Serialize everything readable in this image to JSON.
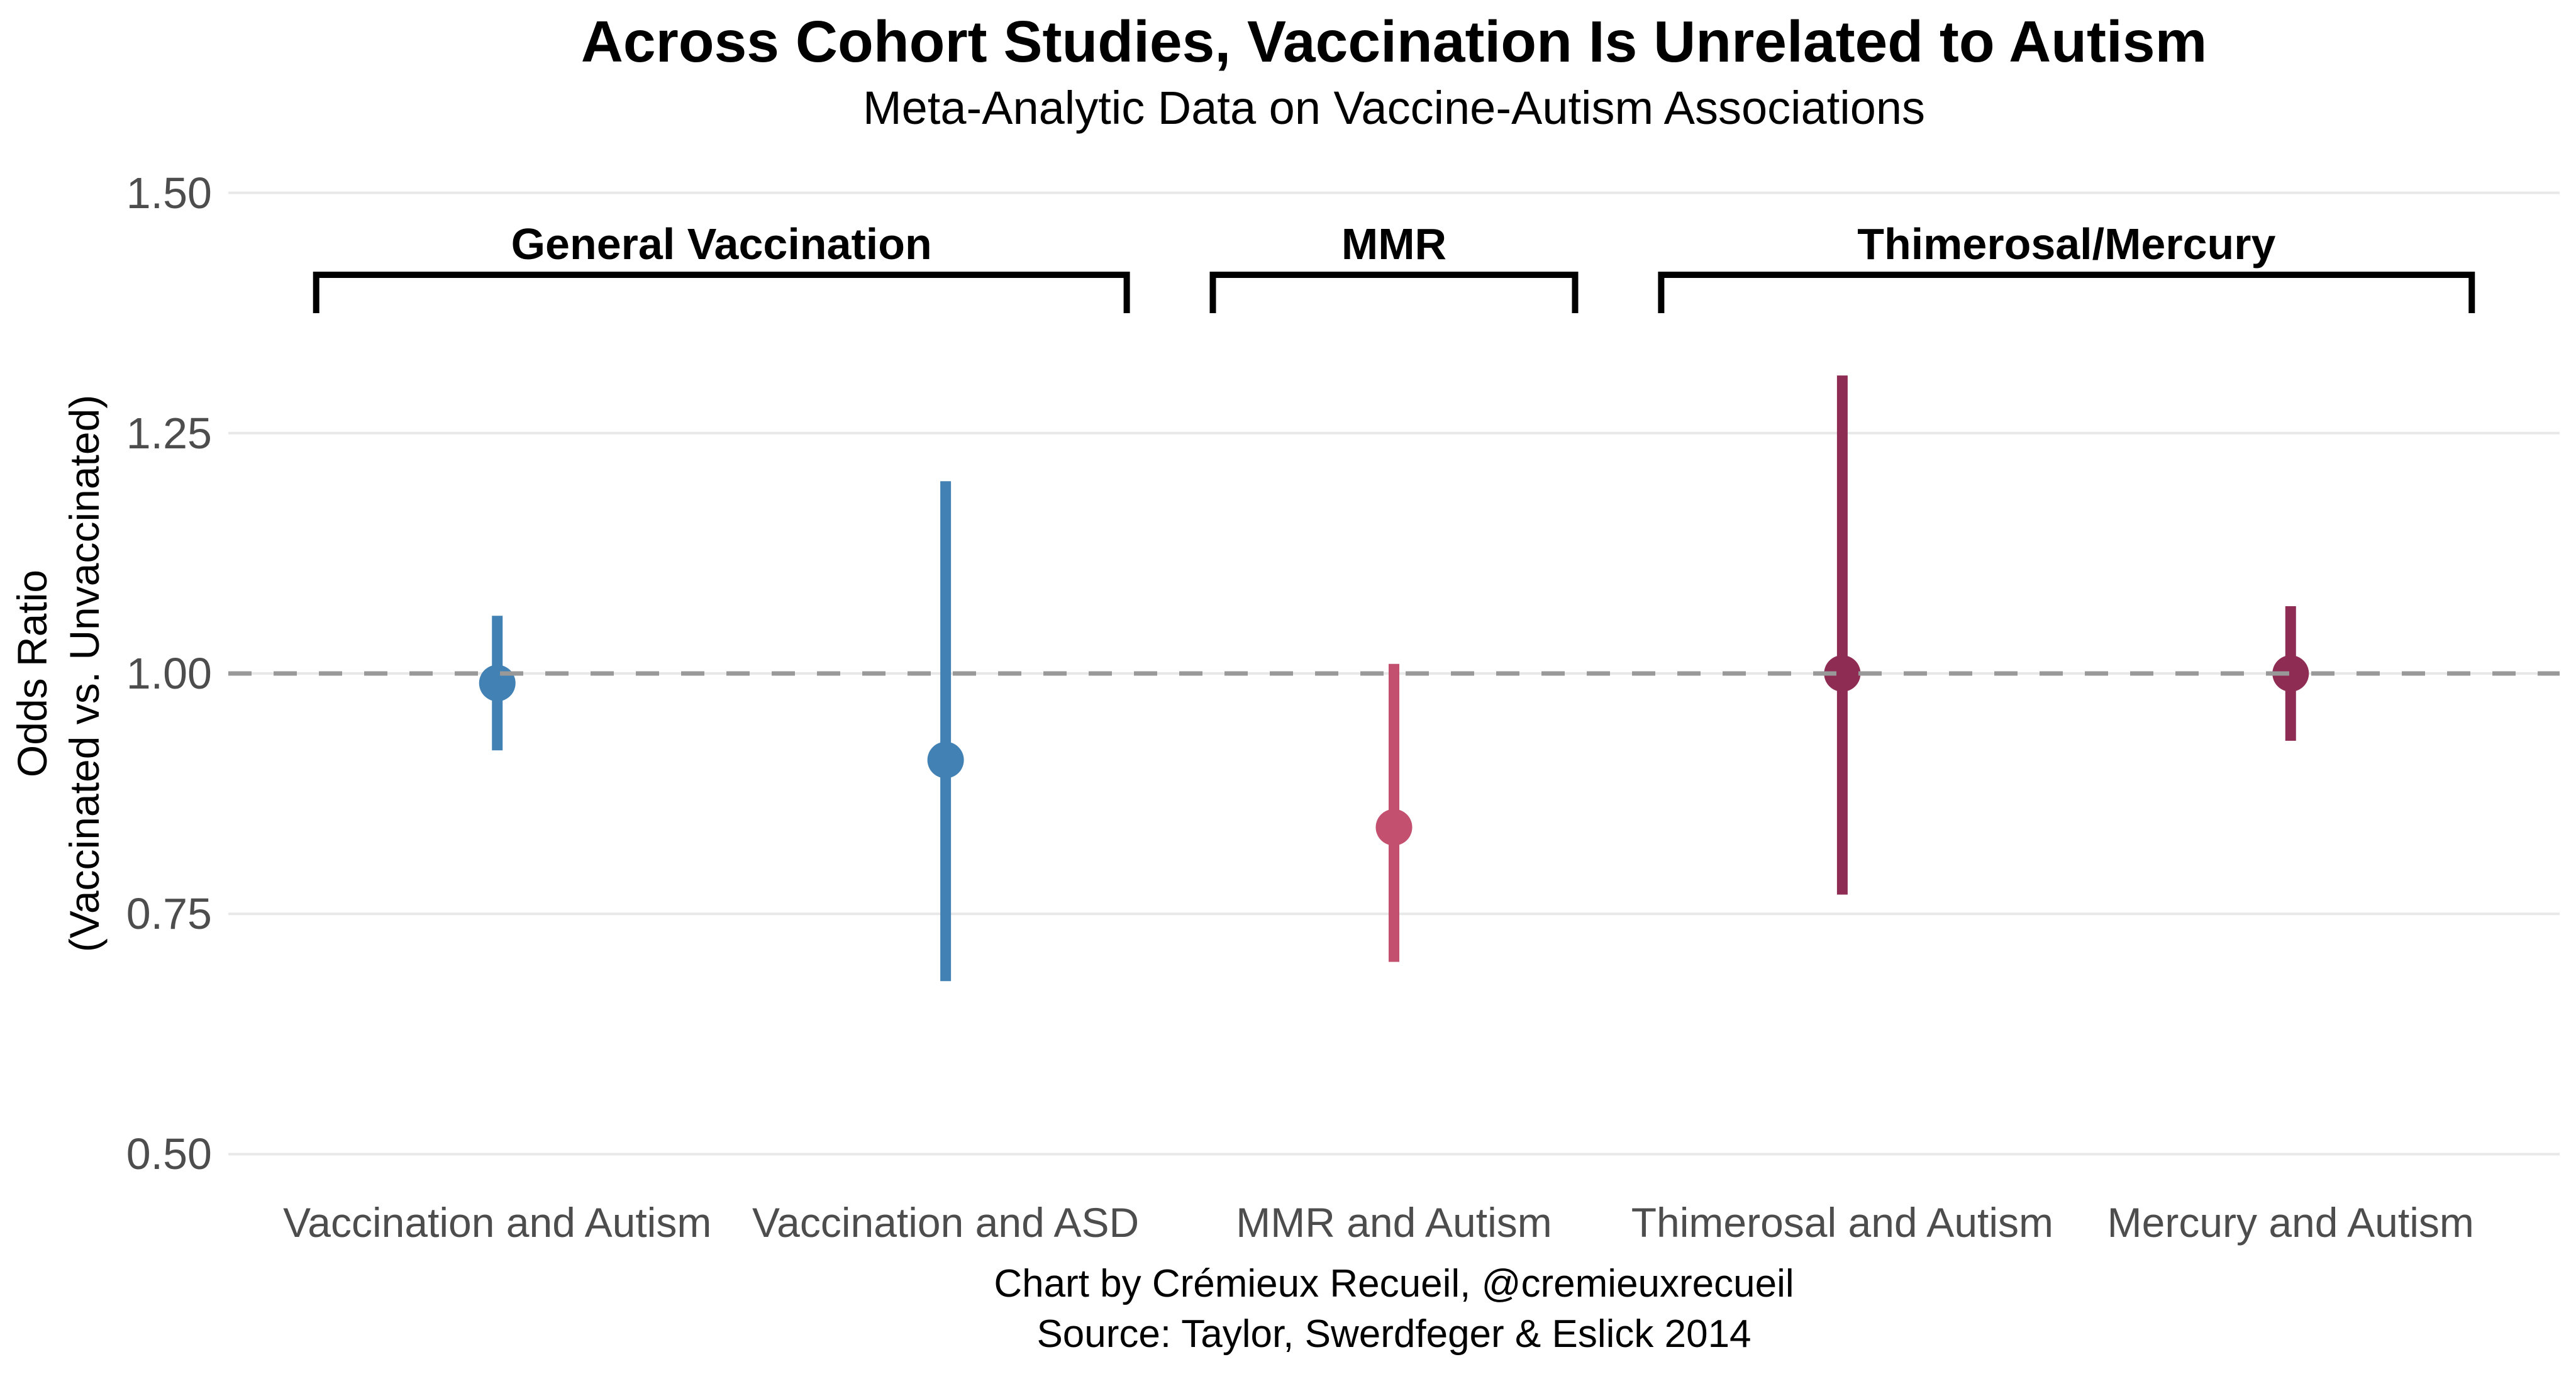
{
  "header": {
    "title": "Across Cohort Studies, Vaccination Is Unrelated to Autism",
    "subtitle": "Meta-Analytic Data on Vaccine-Autism Associations"
  },
  "y_axis": {
    "title_line1": "Odds Ratio",
    "title_line2": "(Vaccinated vs. Unvaccinated)"
  },
  "footer": {
    "credit": "Chart by Crémieux Recueil, @cremieuxrecueil",
    "source": "Source: Taylor, Swerdfeger & Eslick 2014"
  },
  "chart_data": {
    "type": "scatter",
    "variant": "point_range_forest",
    "title": "Across Cohort Studies, Vaccination Is Unrelated to Autism",
    "subtitle": "Meta-Analytic Data on Vaccine-Autism Associations",
    "xlabel": "",
    "ylabel": "Odds Ratio (Vaccinated vs. Unvaccinated)",
    "ylim": [
      0.44,
      1.56
    ],
    "y_ticks": [
      "1.50",
      "1.25",
      "1.00",
      "0.75",
      "0.50"
    ],
    "y_tick_values": [
      1.5,
      1.25,
      1.0,
      0.75,
      0.5
    ],
    "grid": "horizontal-major-only",
    "legend_position": "none",
    "reference_line": {
      "y": 1.0,
      "style": "dashed",
      "color": "#999999"
    },
    "categories": [
      "Vaccination and Autism",
      "Vaccination and ASD",
      "MMR and Autism",
      "Thimerosal and Autism",
      "Mercury and Autism"
    ],
    "series": [
      {
        "category": "Vaccination and Autism",
        "odds_ratio": 0.99,
        "ci_low": 0.92,
        "ci_high": 1.06,
        "color": "#4281B4"
      },
      {
        "category": "Vaccination and ASD",
        "odds_ratio": 0.91,
        "ci_low": 0.68,
        "ci_high": 1.2,
        "color": "#4281B4"
      },
      {
        "category": "MMR and Autism",
        "odds_ratio": 0.84,
        "ci_low": 0.7,
        "ci_high": 1.01,
        "color": "#C4506F"
      },
      {
        "category": "Thimerosal and Autism",
        "odds_ratio": 1.0,
        "ci_low": 0.77,
        "ci_high": 1.31,
        "color": "#8E2C53"
      },
      {
        "category": "Mercury and Autism",
        "odds_ratio": 1.0,
        "ci_low": 0.93,
        "ci_high": 1.07,
        "color": "#8E2C53"
      }
    ],
    "groups": [
      {
        "label": "General Vaccination",
        "from": 0,
        "to": 1
      },
      {
        "label": "MMR",
        "from": 2,
        "to": 2
      },
      {
        "label": "Thimerosal/Mercury",
        "from": 3,
        "to": 4
      }
    ],
    "colors": {
      "general_vaccination": "#4281B4",
      "mmr": "#C4506F",
      "thimerosal_mercury": "#8E2C53",
      "gridline": "#E8E8E8",
      "reference": "#999999",
      "axis_text": "#4D4D4D",
      "text": "#000000",
      "background": "#FFFFFF"
    }
  }
}
